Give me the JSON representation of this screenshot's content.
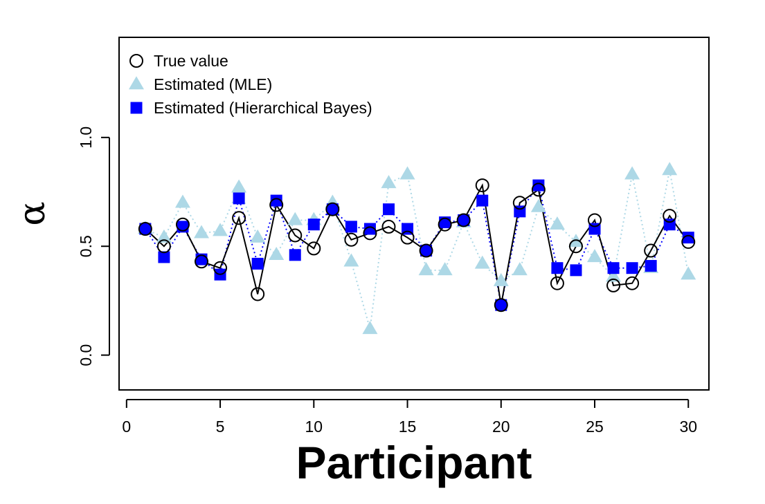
{
  "chart_data": {
    "type": "line",
    "title": "",
    "xlabel": "Participant",
    "ylabel": "α",
    "xlim": [
      -0.4,
      31.1
    ],
    "ylim": [
      -0.16,
      1.46
    ],
    "x_ticks": [
      0,
      5,
      10,
      15,
      20,
      25,
      30
    ],
    "x_tick_labels": [
      "0",
      "5",
      "10",
      "15",
      "20",
      "25",
      "30"
    ],
    "y_ticks": [
      0.0,
      0.5,
      1.0
    ],
    "y_tick_labels": [
      "0.0",
      "0.5",
      "1.0"
    ],
    "grid": false,
    "legend_position": "top-left",
    "x": [
      1,
      2,
      3,
      4,
      5,
      6,
      7,
      8,
      9,
      10,
      11,
      12,
      13,
      14,
      15,
      16,
      17,
      18,
      19,
      20,
      21,
      22,
      23,
      24,
      25,
      26,
      27,
      28,
      29,
      30
    ],
    "series": [
      {
        "name": "True value",
        "marker": "open-circle",
        "line": "solid",
        "color": "#000000",
        "values": [
          0.58,
          0.5,
          0.6,
          0.43,
          0.4,
          0.63,
          0.28,
          0.69,
          0.55,
          0.49,
          0.67,
          0.53,
          0.56,
          0.59,
          0.54,
          0.48,
          0.6,
          0.62,
          0.78,
          0.23,
          0.7,
          0.76,
          0.33,
          0.5,
          0.62,
          0.32,
          0.33,
          0.48,
          0.64,
          0.52
        ]
      },
      {
        "name": "Estimated (MLE)",
        "marker": "triangle",
        "line": "dotted",
        "color": "#add8e6",
        "values": [
          0.58,
          0.54,
          0.7,
          0.56,
          0.57,
          0.77,
          0.54,
          0.46,
          0.62,
          0.62,
          0.7,
          0.43,
          0.12,
          0.79,
          0.83,
          0.39,
          0.39,
          0.61,
          0.42,
          0.34,
          0.39,
          0.68,
          0.6,
          0.52,
          0.45,
          0.36,
          0.83,
          0.4,
          0.85,
          0.37
        ]
      },
      {
        "name": "Estimated (Hierarchical Bayes)",
        "marker": "filled-square",
        "line": "dotted",
        "color": "#0000ff",
        "values": [
          0.58,
          0.45,
          0.59,
          0.44,
          0.37,
          0.72,
          0.42,
          0.71,
          0.46,
          0.6,
          0.67,
          0.59,
          0.58,
          0.67,
          0.58,
          0.48,
          0.61,
          0.62,
          0.71,
          0.23,
          0.66,
          0.78,
          0.4,
          0.39,
          0.58,
          0.4,
          0.4,
          0.41,
          0.6,
          0.54
        ]
      }
    ]
  }
}
